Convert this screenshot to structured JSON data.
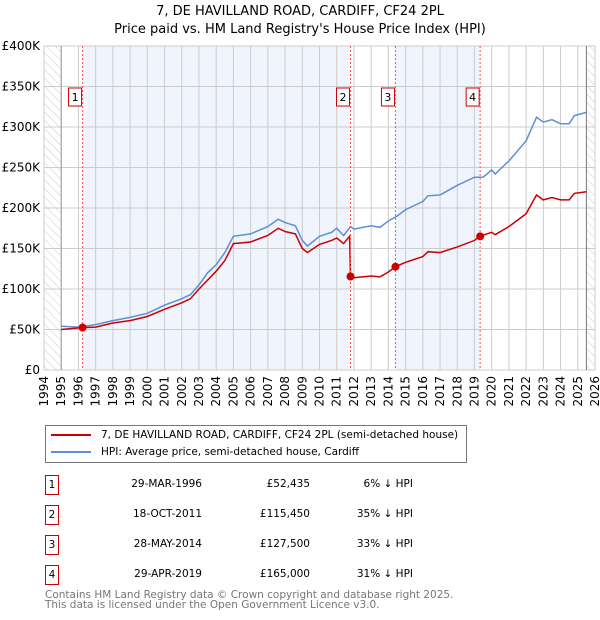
{
  "chart_data": {
    "type": "line",
    "title": "7, DE HAVILLAND ROAD, CARDIFF, CF24 2PL",
    "subtitle": "Price paid vs. HM Land Registry's House Price Index (HPI)",
    "xlim": [
      1994,
      2026
    ],
    "ylim": [
      0,
      400000
    ],
    "x_ticks": [
      "1994",
      "1995",
      "1996",
      "1997",
      "1998",
      "1999",
      "2000",
      "2001",
      "2002",
      "2003",
      "2004",
      "2005",
      "2006",
      "2007",
      "2008",
      "2009",
      "2010",
      "2011",
      "2012",
      "2013",
      "2014",
      "2015",
      "2016",
      "2017",
      "2018",
      "2019",
      "2020",
      "2021",
      "2022",
      "2023",
      "2024",
      "2025",
      "2026"
    ],
    "y_ticks": [
      {
        "v": 0,
        "label": "£0"
      },
      {
        "v": 50000,
        "label": "£50K"
      },
      {
        "v": 100000,
        "label": "£100K"
      },
      {
        "v": 150000,
        "label": "£150K"
      },
      {
        "v": 200000,
        "label": "£200K"
      },
      {
        "v": 250000,
        "label": "£250K"
      },
      {
        "v": 300000,
        "label": "£300K"
      },
      {
        "v": 350000,
        "label": "£350K"
      },
      {
        "v": 400000,
        "label": "£400K"
      }
    ],
    "grid": true,
    "series": [
      {
        "name": "7, DE HAVILLAND ROAD, CARDIFF, CF24 2PL (semi-detached house)",
        "color": "#cc0000",
        "x": [
          1995,
          1996.2,
          1997,
          1998,
          1999,
          2000,
          2001,
          2002,
          2002.5,
          2003,
          2004,
          2004.5,
          2005,
          2006,
          2007,
          2007.6,
          2008,
          2008.6,
          2009,
          2009.3,
          2010,
          2010.7,
          2011,
          2011.4,
          2011.75,
          2011.8,
          2012,
          2013,
          2013.5,
          2014,
          2014.4,
          2015,
          2016,
          2016.3,
          2017,
          2018,
          2019,
          2019.3,
          2020,
          2020.2,
          2021,
          2022,
          2022.6,
          2023,
          2023.5,
          2024,
          2024.5,
          2024.8,
          2025.5
        ],
        "y": [
          50,
          52.4,
          53,
          58,
          61,
          66,
          75,
          83,
          88,
          100,
          122,
          135,
          156,
          158,
          166,
          175,
          171,
          168,
          150,
          145,
          155,
          160,
          163,
          156,
          165,
          115.45,
          114,
          116,
          115,
          121,
          127.5,
          133,
          140,
          146,
          145,
          152,
          160,
          165,
          170,
          167,
          177,
          193,
          216,
          210,
          213,
          210,
          210,
          218,
          220
        ]
      },
      {
        "name": "HPI: Average price, semi-detached house, Cardiff",
        "color": "#5b8fd6",
        "x": [
          1995,
          1996,
          1997,
          1998,
          1999,
          2000,
          2001,
          2002,
          2002.5,
          2003,
          2003.5,
          2004,
          2004.5,
          2005,
          2006,
          2007,
          2007.6,
          2008,
          2008.6,
          2009,
          2009.3,
          2010,
          2010.7,
          2011,
          2011.4,
          2011.8,
          2012,
          2013,
          2013.5,
          2014,
          2014.5,
          2015,
          2016,
          2016.3,
          2017,
          2018,
          2019,
          2019.5,
          2020,
          2020.2,
          2021,
          2022,
          2022.6,
          2023,
          2023.5,
          2024,
          2024.5,
          2024.8,
          2025.5
        ],
        "y": [
          54,
          53,
          56,
          61,
          65,
          70,
          80,
          88,
          93,
          105,
          120,
          130,
          145,
          165,
          168,
          177,
          186,
          182,
          178,
          160,
          153,
          165,
          170,
          175,
          166,
          177,
          174,
          178,
          176,
          184,
          190,
          198,
          208,
          215,
          216,
          228,
          238,
          238,
          247,
          242,
          258,
          283,
          312,
          306,
          309,
          304,
          304,
          314,
          318
        ]
      }
    ],
    "y_unit": "thousands GBP",
    "shaded_ranges": [
      [
        1996.24,
        2011.8
      ],
      [
        2014.41,
        2019.33
      ]
    ],
    "sales": [
      {
        "n": "1",
        "x": 1996.24,
        "date": "29-MAR-1996",
        "price": "£52,435",
        "value": 52435,
        "hpi": "6% ↓ HPI"
      },
      {
        "n": "2",
        "x": 2011.8,
        "date": "18-OCT-2011",
        "price": "£115,450",
        "value": 115450,
        "hpi": "35% ↓ HPI"
      },
      {
        "n": "3",
        "x": 2014.41,
        "date": "28-MAY-2014",
        "price": "£127,500",
        "value": 127500,
        "hpi": "33% ↓ HPI"
      },
      {
        "n": "4",
        "x": 2019.33,
        "date": "29-APR-2019",
        "price": "£165,000",
        "value": 165000,
        "hpi": "31% ↓ HPI"
      }
    ],
    "legend_placement": "below"
  },
  "footer": {
    "line1": "Contains HM Land Registry data © Crown copyright and database right 2025.",
    "line2": "This data is licensed under the Open Government Licence v3.0."
  }
}
